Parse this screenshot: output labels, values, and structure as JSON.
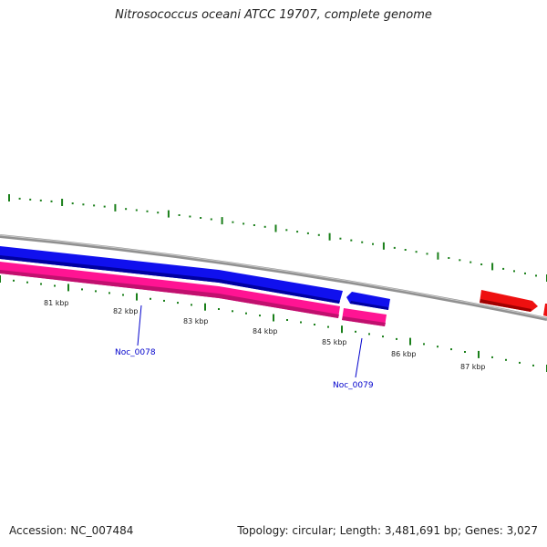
{
  "title": "Nitrosococcus oceani ATCC 19707, complete genome",
  "footer": {
    "accession": "Accession: NC_007484",
    "summary": "Topology: circular; Length: 3,481,691 bp; Genes: 3,027"
  },
  "ticks": [
    {
      "label": "81 kbp"
    },
    {
      "label": "82 kbp"
    },
    {
      "label": "83 kbp"
    },
    {
      "label": "84 kbp"
    },
    {
      "label": "85 kbp"
    },
    {
      "label": "86 kbp"
    },
    {
      "label": "87 kbp"
    }
  ],
  "gene_labels": [
    {
      "label": "Noc_0078"
    },
    {
      "label": "Noc_0079"
    }
  ],
  "colors": {
    "backbone": "#808080",
    "cds_reverse": "#0000ff",
    "cds_forward": "#ff0000",
    "gene": "#ff1493",
    "ticks": "#1a7f1a",
    "gene_label": "#0000cc"
  }
}
